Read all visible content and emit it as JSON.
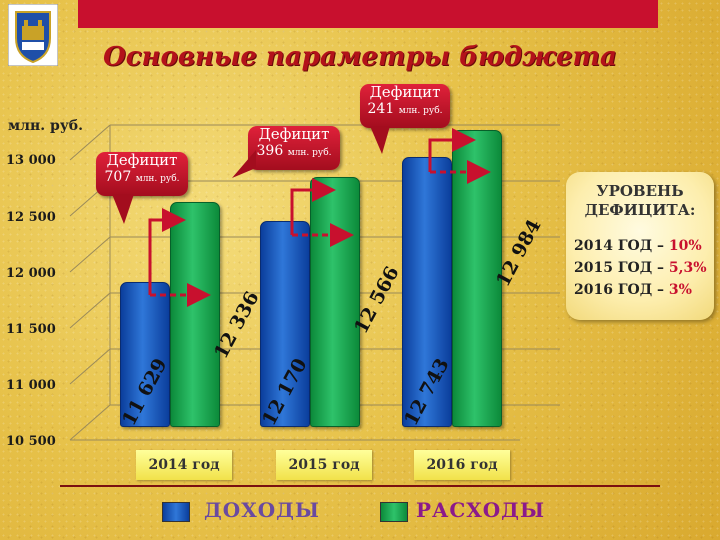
{
  "title": "Основные параметры бюджета",
  "unit_label": "млн. руб.",
  "chart_data": {
    "type": "bar",
    "categories": [
      "2014 год",
      "2015 год",
      "2016 год"
    ],
    "series": [
      {
        "name": "ДОХОДЫ",
        "values": [
          11629,
          12170,
          12743
        ],
        "color": "#1f5fc0"
      },
      {
        "name": "РАСХОДЫ",
        "values": [
          12336,
          12566,
          12984
        ],
        "color": "#1ea850"
      }
    ],
    "value_labels": {
      "income": [
        "11 629",
        "12 170",
        "12 743"
      ],
      "expenses": [
        "12 336",
        "12 566",
        "12 984"
      ]
    },
    "yticks": [
      "13 000",
      "12 500",
      "12 000",
      "11 500",
      "11 000",
      "10 500"
    ],
    "ylim": [
      10500,
      13000
    ],
    "legend_position": "bottom"
  },
  "deficits": [
    {
      "label": "Дефицит",
      "value": "707",
      "unit": "млн. руб."
    },
    {
      "label": "Дефицит",
      "value": "396",
      "unit": "млн. руб."
    },
    {
      "label": "Дефицит",
      "value": "241",
      "unit": "млн. руб."
    }
  ],
  "info_box": {
    "title_line1": "УРОВЕНЬ",
    "title_line2": "ДЕФИЦИТА:",
    "lines": [
      {
        "text": "2014 ГОД – ",
        "pct": "10%"
      },
      {
        "text": "2015 ГОД – ",
        "pct": "5,3%"
      },
      {
        "text": "2016 ГОД – ",
        "pct": "3%"
      }
    ]
  },
  "colors": {
    "accent": "#c8102e",
    "income": "#1f5fc0",
    "expenses": "#1ea850"
  }
}
